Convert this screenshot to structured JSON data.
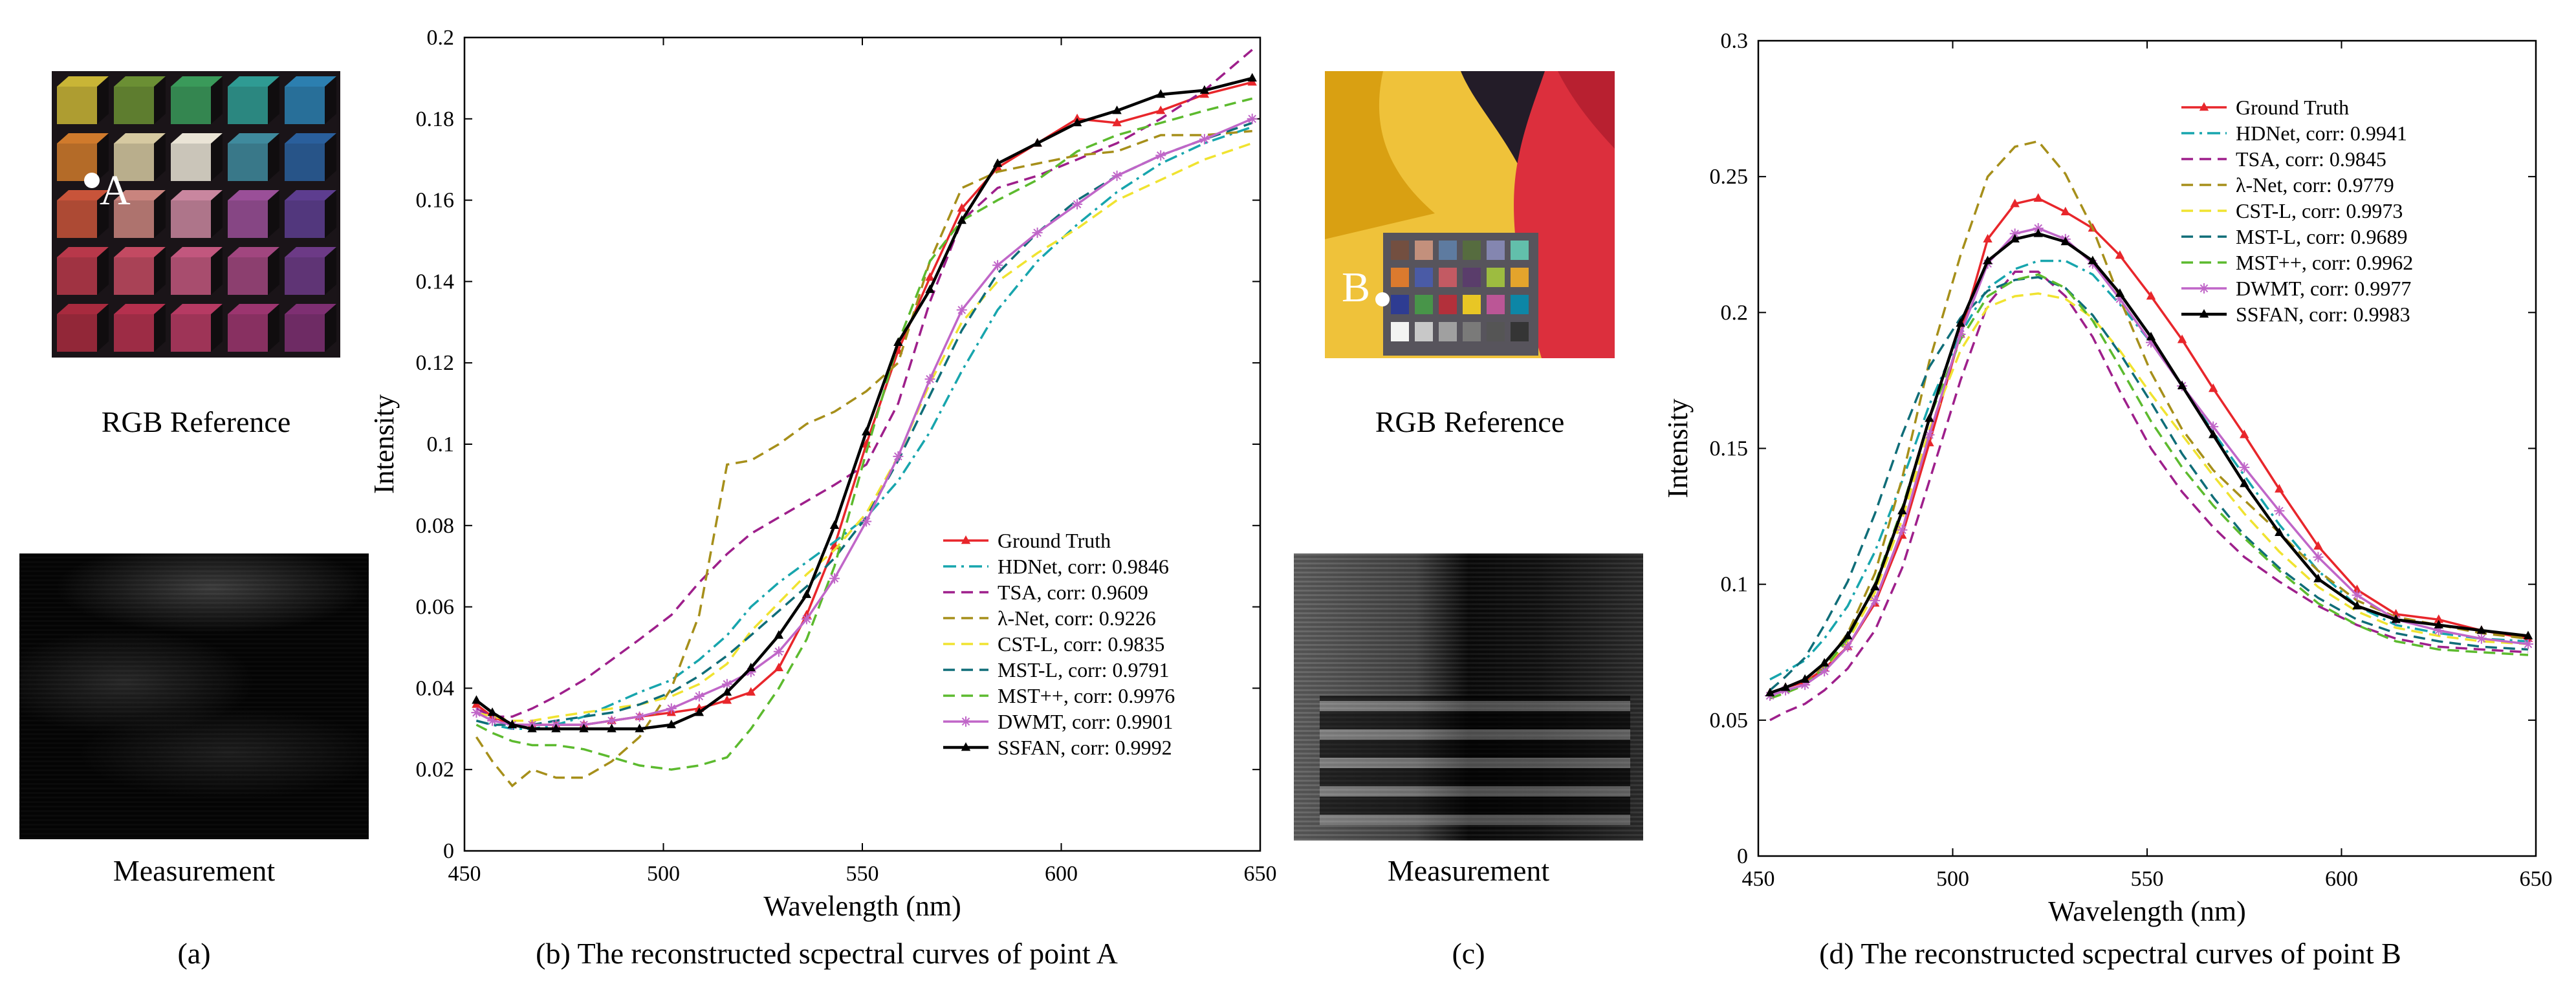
{
  "panels": {
    "a": {
      "rgb_label": "RGB Reference",
      "meas_label": "Measurement",
      "caption": "(a)",
      "point_label": "A"
    },
    "b": {
      "caption": "(b) The reconstructed scpectral curves of point A"
    },
    "c": {
      "rgb_label": "RGB Reference",
      "meas_label": "Measurement",
      "caption": "(c)",
      "point_label": "B"
    },
    "d": {
      "caption": "(d) The reconstructed scpectral curves of point B"
    }
  },
  "chart_data": [
    {
      "type": "line",
      "panel": "b",
      "title": "",
      "xlabel": "Wavelength (nm)",
      "ylabel": "Intensity",
      "xlim": [
        450,
        650
      ],
      "ylim": [
        0,
        0.2
      ],
      "xticks": [
        450,
        500,
        550,
        600,
        650
      ],
      "yticks": [
        0,
        0.02,
        0.04,
        0.06,
        0.08,
        0.1,
        0.12,
        0.14,
        0.16,
        0.18,
        0.2
      ],
      "legend_position": "bottom-right",
      "x": [
        453,
        457,
        462,
        467,
        473,
        480,
        487,
        494,
        502,
        509,
        516,
        522,
        529,
        536,
        543,
        551,
        559,
        567,
        575,
        584,
        594,
        604,
        614,
        625,
        636,
        648
      ],
      "series": [
        {
          "name": "Ground Truth",
          "label": "Ground Truth",
          "color": "#e8262b",
          "dash": "solid",
          "marker": "triangle",
          "values": [
            0.036,
            0.033,
            0.031,
            0.031,
            0.031,
            0.031,
            0.032,
            0.033,
            0.034,
            0.035,
            0.037,
            0.039,
            0.045,
            0.058,
            0.075,
            0.1,
            0.123,
            0.141,
            0.158,
            0.168,
            0.174,
            0.18,
            0.179,
            0.182,
            0.186,
            0.189
          ]
        },
        {
          "name": "HDNet",
          "label": "HDNet, corr: 0.9846",
          "color": "#17a5ad",
          "dash": "dashdot",
          "marker": "none",
          "values": [
            0.032,
            0.031,
            0.03,
            0.03,
            0.031,
            0.033,
            0.036,
            0.039,
            0.042,
            0.047,
            0.053,
            0.06,
            0.066,
            0.071,
            0.076,
            0.082,
            0.091,
            0.103,
            0.118,
            0.133,
            0.145,
            0.154,
            0.162,
            0.169,
            0.174,
            0.178
          ]
        },
        {
          "name": "TSA",
          "label": "TSA, corr: 0.9609",
          "color": "#9e1f8b",
          "dash": "dashed",
          "marker": "none",
          "values": [
            0.035,
            0.033,
            0.033,
            0.035,
            0.038,
            0.042,
            0.047,
            0.052,
            0.058,
            0.066,
            0.073,
            0.078,
            0.082,
            0.086,
            0.09,
            0.095,
            0.11,
            0.135,
            0.155,
            0.163,
            0.166,
            0.17,
            0.174,
            0.18,
            0.187,
            0.197
          ]
        },
        {
          "name": "λ-Net",
          "label": "λ-Net, corr: 0.9226",
          "color": "#a68f1a",
          "dash": "dashed",
          "marker": "none",
          "values": [
            0.028,
            0.022,
            0.016,
            0.02,
            0.018,
            0.018,
            0.022,
            0.028,
            0.04,
            0.058,
            0.095,
            0.096,
            0.1,
            0.105,
            0.108,
            0.113,
            0.12,
            0.145,
            0.163,
            0.167,
            0.169,
            0.171,
            0.172,
            0.176,
            0.176,
            0.177
          ]
        },
        {
          "name": "CST-L",
          "label": "CST-L, corr: 0.9835",
          "color": "#f0e330",
          "dash": "dashed",
          "marker": "none",
          "values": [
            0.034,
            0.033,
            0.032,
            0.032,
            0.033,
            0.034,
            0.035,
            0.036,
            0.038,
            0.041,
            0.046,
            0.054,
            0.061,
            0.068,
            0.074,
            0.083,
            0.097,
            0.115,
            0.13,
            0.14,
            0.147,
            0.153,
            0.16,
            0.165,
            0.17,
            0.174
          ]
        },
        {
          "name": "MST-L",
          "label": "MST-L, corr: 0.9791",
          "color": "#0f6d78",
          "dash": "dashed",
          "marker": "none",
          "values": [
            0.032,
            0.031,
            0.031,
            0.031,
            0.032,
            0.033,
            0.034,
            0.036,
            0.039,
            0.043,
            0.048,
            0.053,
            0.059,
            0.065,
            0.072,
            0.082,
            0.096,
            0.112,
            0.128,
            0.142,
            0.152,
            0.16,
            0.166,
            0.171,
            0.175,
            0.179
          ]
        },
        {
          "name": "MST++",
          "label": "MST++, corr: 0.9976",
          "color": "#5cba2e",
          "dash": "dashed",
          "marker": "none",
          "values": [
            0.031,
            0.029,
            0.027,
            0.026,
            0.026,
            0.025,
            0.023,
            0.021,
            0.02,
            0.021,
            0.023,
            0.03,
            0.04,
            0.052,
            0.07,
            0.098,
            0.125,
            0.145,
            0.155,
            0.16,
            0.165,
            0.172,
            0.176,
            0.179,
            0.182,
            0.185
          ]
        },
        {
          "name": "DWMT",
          "label": "DWMT, corr: 0.9901",
          "color": "#c066c8",
          "dash": "solid",
          "marker": "star",
          "values": [
            0.034,
            0.032,
            0.031,
            0.031,
            0.031,
            0.031,
            0.032,
            0.033,
            0.035,
            0.038,
            0.041,
            0.044,
            0.049,
            0.057,
            0.067,
            0.081,
            0.097,
            0.116,
            0.133,
            0.144,
            0.152,
            0.159,
            0.166,
            0.171,
            0.175,
            0.18
          ]
        },
        {
          "name": "SSFAN",
          "label": "SSFAN, corr: 0.9992",
          "color": "#000000",
          "dash": "solid",
          "marker": "triangle",
          "values": [
            0.037,
            0.034,
            0.031,
            0.03,
            0.03,
            0.03,
            0.03,
            0.03,
            0.031,
            0.034,
            0.039,
            0.045,
            0.053,
            0.063,
            0.08,
            0.103,
            0.125,
            0.138,
            0.155,
            0.169,
            0.174,
            0.179,
            0.182,
            0.186,
            0.187,
            0.19
          ]
        }
      ]
    },
    {
      "type": "line",
      "panel": "d",
      "title": "",
      "xlabel": "Wavelength (nm)",
      "ylabel": "Intensity",
      "xlim": [
        450,
        650
      ],
      "ylim": [
        0,
        0.3
      ],
      "xticks": [
        450,
        500,
        550,
        600,
        650
      ],
      "yticks": [
        0,
        0.05,
        0.1,
        0.15,
        0.2,
        0.25,
        0.3
      ],
      "legend_position": "top-right",
      "x": [
        453,
        457,
        462,
        467,
        473,
        480,
        487,
        494,
        502,
        509,
        516,
        522,
        529,
        536,
        543,
        551,
        559,
        567,
        575,
        584,
        594,
        604,
        614,
        625,
        636,
        648
      ],
      "series": [
        {
          "name": "Ground Truth",
          "label": "Ground Truth",
          "color": "#e8262b",
          "dash": "solid",
          "marker": "triangle",
          "values": [
            0.06,
            0.062,
            0.064,
            0.069,
            0.077,
            0.093,
            0.118,
            0.152,
            0.192,
            0.227,
            0.24,
            0.242,
            0.237,
            0.231,
            0.221,
            0.206,
            0.19,
            0.172,
            0.155,
            0.135,
            0.114,
            0.098,
            0.089,
            0.087,
            0.083,
            0.08
          ]
        },
        {
          "name": "HDNet",
          "label": "HDNet, corr: 0.9941",
          "color": "#17a5ad",
          "dash": "dashdot",
          "marker": "none",
          "values": [
            0.065,
            0.068,
            0.072,
            0.08,
            0.092,
            0.112,
            0.138,
            0.166,
            0.192,
            0.209,
            0.216,
            0.219,
            0.219,
            0.214,
            0.203,
            0.189,
            0.173,
            0.156,
            0.14,
            0.122,
            0.105,
            0.092,
            0.085,
            0.082,
            0.08,
            0.079
          ]
        },
        {
          "name": "TSA",
          "label": "TSA, corr: 0.9845",
          "color": "#9e1f8b",
          "dash": "dashed",
          "marker": "none",
          "values": [
            0.05,
            0.053,
            0.056,
            0.061,
            0.069,
            0.083,
            0.106,
            0.138,
            0.175,
            0.203,
            0.215,
            0.215,
            0.206,
            0.191,
            0.171,
            0.15,
            0.134,
            0.121,
            0.11,
            0.101,
            0.092,
            0.085,
            0.08,
            0.077,
            0.076,
            0.075
          ]
        },
        {
          "name": "λ-Net",
          "label": "λ-Net, corr: 0.9779",
          "color": "#a68f1a",
          "dash": "dashed",
          "marker": "none",
          "values": [
            0.058,
            0.06,
            0.063,
            0.07,
            0.082,
            0.104,
            0.139,
            0.182,
            0.221,
            0.25,
            0.261,
            0.263,
            0.251,
            0.231,
            0.205,
            0.178,
            0.157,
            0.142,
            0.131,
            0.119,
            0.105,
            0.094,
            0.088,
            0.085,
            0.082,
            0.08
          ]
        },
        {
          "name": "CST-L",
          "label": "CST-L, corr: 0.9973",
          "color": "#f0e330",
          "dash": "dashed",
          "marker": "none",
          "values": [
            0.058,
            0.06,
            0.063,
            0.069,
            0.079,
            0.097,
            0.124,
            0.157,
            0.186,
            0.202,
            0.206,
            0.207,
            0.205,
            0.198,
            0.186,
            0.17,
            0.155,
            0.14,
            0.126,
            0.112,
            0.099,
            0.09,
            0.084,
            0.081,
            0.079,
            0.078
          ]
        },
        {
          "name": "MST-L",
          "label": "MST-L, corr: 0.9689",
          "color": "#0f6d78",
          "dash": "dashed",
          "marker": "none",
          "values": [
            0.061,
            0.066,
            0.073,
            0.085,
            0.101,
            0.126,
            0.155,
            0.18,
            0.198,
            0.208,
            0.212,
            0.213,
            0.209,
            0.199,
            0.185,
            0.167,
            0.148,
            0.132,
            0.118,
            0.106,
            0.095,
            0.087,
            0.082,
            0.079,
            0.077,
            0.076
          ]
        },
        {
          "name": "MST++",
          "label": "MST++, corr: 0.9962",
          "color": "#5cba2e",
          "dash": "dashed",
          "marker": "none",
          "values": [
            0.058,
            0.06,
            0.063,
            0.069,
            0.08,
            0.1,
            0.128,
            0.161,
            0.19,
            0.206,
            0.212,
            0.214,
            0.209,
            0.197,
            0.18,
            0.16,
            0.143,
            0.129,
            0.117,
            0.105,
            0.093,
            0.085,
            0.079,
            0.076,
            0.075,
            0.074
          ]
        },
        {
          "name": "DWMT",
          "label": "DWMT, corr: 0.9977",
          "color": "#c066c8",
          "dash": "solid",
          "marker": "star",
          "values": [
            0.059,
            0.061,
            0.063,
            0.068,
            0.077,
            0.094,
            0.12,
            0.155,
            0.192,
            0.218,
            0.229,
            0.231,
            0.227,
            0.218,
            0.205,
            0.189,
            0.173,
            0.158,
            0.143,
            0.127,
            0.11,
            0.096,
            0.087,
            0.083,
            0.08,
            0.078
          ]
        },
        {
          "name": "SSFAN",
          "label": "SSFAN, corr: 0.9983",
          "color": "#000000",
          "dash": "solid",
          "marker": "triangle",
          "values": [
            0.06,
            0.062,
            0.065,
            0.071,
            0.081,
            0.099,
            0.127,
            0.161,
            0.196,
            0.219,
            0.227,
            0.229,
            0.226,
            0.219,
            0.207,
            0.191,
            0.173,
            0.155,
            0.137,
            0.119,
            0.102,
            0.092,
            0.087,
            0.085,
            0.083,
            0.081
          ]
        }
      ]
    }
  ]
}
